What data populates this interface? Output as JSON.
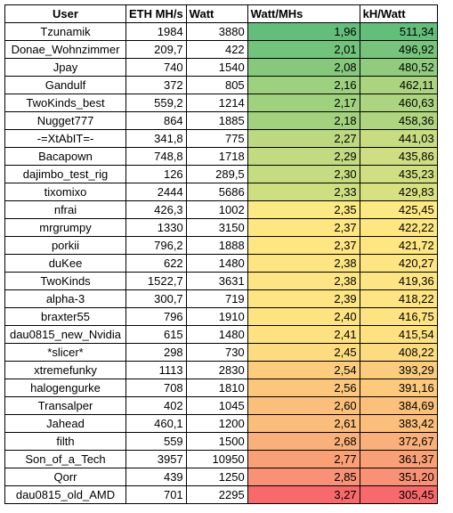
{
  "headers": [
    "User",
    "ETH MH/s",
    "Watt",
    "Watt/MHs",
    "kH/Watt"
  ],
  "rows": [
    {
      "user": "Tzunamik",
      "eth": "1984",
      "watt": "3880",
      "watt_mhs": "1,96",
      "kh_watt": "511,34",
      "wm_color": "#63be7b",
      "kh_color": "#63be7b"
    },
    {
      "user": "Donae_Wohnzimmer",
      "eth": "209,7",
      "watt": "422",
      "watt_mhs": "2,01",
      "kh_watt": "496,92",
      "wm_color": "#72c37c",
      "kh_color": "#78c47c"
    },
    {
      "user": "Jpay",
      "eth": "740",
      "watt": "1540",
      "watt_mhs": "2,08",
      "kh_watt": "480,52",
      "wm_color": "#86c97d",
      "kh_color": "#90cb7e"
    },
    {
      "user": "Gandulf",
      "eth": "372",
      "watt": "805",
      "watt_mhs": "2,16",
      "kh_watt": "462,11",
      "wm_color": "#9dd07f",
      "kh_color": "#abd380"
    },
    {
      "user": "TwoKinds_best",
      "eth": "559,2",
      "watt": "1214",
      "watt_mhs": "2,17",
      "kh_watt": "460,63",
      "wm_color": "#a0d17f",
      "kh_color": "#add480"
    },
    {
      "user": "Nugget777",
      "eth": "864",
      "watt": "1885",
      "watt_mhs": "2,18",
      "kh_watt": "458,36",
      "wm_color": "#a3d27f",
      "kh_color": "#b0d580"
    },
    {
      "user": "-=XtAbIT=-",
      "eth": "341,8",
      "watt": "775",
      "watt_mhs": "2,27",
      "kh_watt": "441,03",
      "wm_color": "#bcd981",
      "kh_color": "#c8dc81"
    },
    {
      "user": "Bacapown",
      "eth": "748,8",
      "watt": "1718",
      "watt_mhs": "2,29",
      "kh_watt": "435,86",
      "wm_color": "#c2db81",
      "kh_color": "#cfde82"
    },
    {
      "user": "dajimbo_test_rig",
      "eth": "126",
      "watt": "289,5",
      "watt_mhs": "2,30",
      "kh_watt": "435,23",
      "wm_color": "#c5dc81",
      "kh_color": "#d0df82"
    },
    {
      "user": "tixomixo",
      "eth": "2444",
      "watt": "5686",
      "watt_mhs": "2,33",
      "kh_watt": "429,83",
      "wm_color": "#cedf82",
      "kh_color": "#d8e182"
    },
    {
      "user": "nfrai",
      "eth": "426,3",
      "watt": "1002",
      "watt_mhs": "2,35",
      "kh_watt": "425,45",
      "wm_color": "#fde983",
      "kh_color": "#fde983"
    },
    {
      "user": "mrgrumpy",
      "eth": "1330",
      "watt": "3150",
      "watt_mhs": "2,37",
      "kh_watt": "422,22",
      "wm_color": "#fee683",
      "kh_color": "#fee683"
    },
    {
      "user": "porkii",
      "eth": "796,2",
      "watt": "1888",
      "watt_mhs": "2,37",
      "kh_watt": "421,72",
      "wm_color": "#fee683",
      "kh_color": "#fee683"
    },
    {
      "user": "duKee",
      "eth": "622",
      "watt": "1480",
      "watt_mhs": "2,38",
      "kh_watt": "420,27",
      "wm_color": "#fee583",
      "kh_color": "#fee583"
    },
    {
      "user": "TwoKinds",
      "eth": "1522,7",
      "watt": "3631",
      "watt_mhs": "2,38",
      "kh_watt": "419,36",
      "wm_color": "#fee583",
      "kh_color": "#fee583"
    },
    {
      "user": "alpha-3",
      "eth": "300,7",
      "watt": "719",
      "watt_mhs": "2,39",
      "kh_watt": "418,22",
      "wm_color": "#fee482",
      "kh_color": "#fee482"
    },
    {
      "user": "braxter55",
      "eth": "796",
      "watt": "1910",
      "watt_mhs": "2,40",
      "kh_watt": "416,75",
      "wm_color": "#fee382",
      "kh_color": "#fee382"
    },
    {
      "user": "dau0815_new_Nvidia",
      "eth": "615",
      "watt": "1480",
      "watt_mhs": "2,41",
      "kh_watt": "415,54",
      "wm_color": "#fee282",
      "kh_color": "#fee282"
    },
    {
      "user": "*slicer*",
      "eth": "298",
      "watt": "730",
      "watt_mhs": "2,45",
      "kh_watt": "408,22",
      "wm_color": "#fddb81",
      "kh_color": "#fddb81"
    },
    {
      "user": "xtremefunky",
      "eth": "1113",
      "watt": "2830",
      "watt_mhs": "2,54",
      "kh_watt": "393,29",
      "wm_color": "#fccb7e",
      "kh_color": "#fccc7e"
    },
    {
      "user": "halogengurke",
      "eth": "708",
      "watt": "1810",
      "watt_mhs": "2,56",
      "kh_watt": "391,16",
      "wm_color": "#fcc77d",
      "kh_color": "#fcc97d"
    },
    {
      "user": "Transalper",
      "eth": "402",
      "watt": "1045",
      "watt_mhs": "2,60",
      "kh_watt": "384,69",
      "wm_color": "#fbbf7c",
      "kh_color": "#fbc07c"
    },
    {
      "user": "Jahead",
      "eth": "460,1",
      "watt": "1200",
      "watt_mhs": "2,61",
      "kh_watt": "383,42",
      "wm_color": "#fbbd7b",
      "kh_color": "#fbbf7b"
    },
    {
      "user": "filth",
      "eth": "559",
      "watt": "1500",
      "watt_mhs": "2,68",
      "kh_watt": "372,67",
      "wm_color": "#fab07a",
      "kh_color": "#fab07a"
    },
    {
      "user": "Son_of_a_Tech",
      "eth": "3957",
      "watt": "10950",
      "watt_mhs": "2,77",
      "kh_watt": "361,37",
      "wm_color": "#f9a077",
      "kh_color": "#f9a077"
    },
    {
      "user": "Qorr",
      "eth": "439",
      "watt": "1250",
      "watt_mhs": "2,85",
      "kh_watt": "351,20",
      "wm_color": "#f89175",
      "kh_color": "#f89175"
    },
    {
      "user": "dau0815_old_AMD",
      "eth": "701",
      "watt": "2295",
      "watt_mhs": "3,27",
      "kh_watt": "305,45",
      "wm_color": "#f8696b",
      "kh_color": "#f8696b"
    }
  ]
}
